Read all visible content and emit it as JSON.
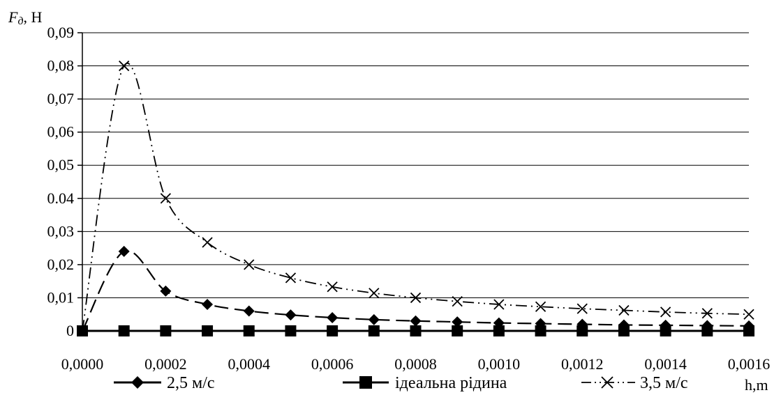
{
  "chart_data": {
    "type": "line",
    "title": "",
    "ylabel": "Fд, Н",
    "ylabel_main": "F",
    "ylabel_sub": "д",
    "ylabel_rest": ", Н",
    "xlabel": "h,m",
    "xlim": [
      0,
      0.0016
    ],
    "ylim": [
      0,
      0.09
    ],
    "x_ticks": [
      "0,0000",
      "0,0002",
      "0,0004",
      "0,0006",
      "0,0008",
      "0,0010",
      "0,0012",
      "0,0014",
      "0,0016"
    ],
    "x_tick_values": [
      0,
      0.0002,
      0.0004,
      0.0006,
      0.0008,
      0.001,
      0.0012,
      0.0014,
      0.0016
    ],
    "y_ticks": [
      "0",
      "0,01",
      "0,02",
      "0,03",
      "0.04",
      "0,05",
      "0,06",
      "0,07",
      "0,08",
      "0,09"
    ],
    "y_tick_values": [
      0,
      0.01,
      0.02,
      0.03,
      0.04,
      0.05,
      0.06,
      0.07,
      0.08,
      0.09
    ],
    "grid": "horizontal",
    "legend_position": "bottom",
    "x": [
      0,
      0.0001,
      0.0002,
      0.0003,
      0.0004,
      0.0005,
      0.0006,
      0.0007,
      0.0008,
      0.0009,
      0.001,
      0.0011,
      0.0012,
      0.0013,
      0.0014,
      0.0015,
      0.0016
    ],
    "series": [
      {
        "name": "2,5 м/с",
        "marker": "diamond",
        "dash": "long-dash",
        "values": [
          0,
          0.024,
          0.012,
          0.008,
          0.006,
          0.0048,
          0.004,
          0.0034,
          0.003,
          0.0027,
          0.0024,
          0.0022,
          0.002,
          0.0018,
          0.0017,
          0.0016,
          0.0015
        ]
      },
      {
        "name": "ідеальна рідина",
        "marker": "square",
        "dash": "solid",
        "values": [
          0,
          0,
          0,
          0,
          0,
          0,
          0,
          0,
          0,
          0,
          0,
          0,
          0,
          0,
          0,
          0,
          0
        ]
      },
      {
        "name": "3,5 м/с",
        "marker": "x",
        "dash": "dash-dot-dot",
        "values": [
          0,
          0.08,
          0.04,
          0.0267,
          0.02,
          0.016,
          0.0133,
          0.0114,
          0.01,
          0.0089,
          0.008,
          0.0073,
          0.0067,
          0.0062,
          0.0057,
          0.0053,
          0.005
        ]
      }
    ]
  }
}
